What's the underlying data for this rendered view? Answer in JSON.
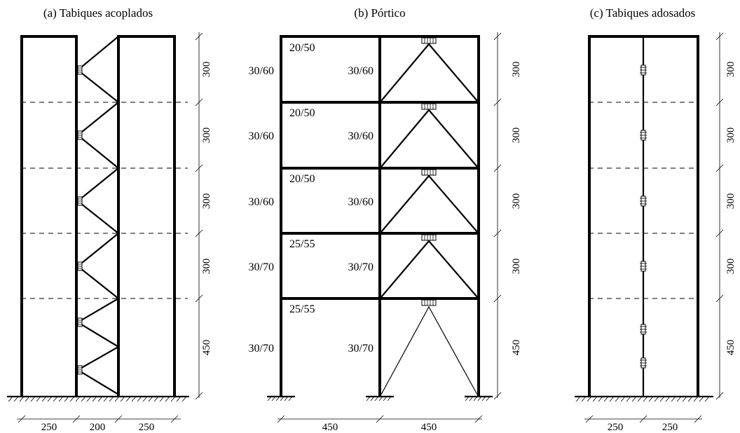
{
  "captions": {
    "a": "(a) Tabiques acoplados",
    "b": "(b) Pórtico",
    "c": "(c) Tabiques adosados"
  },
  "heights": [
    "300",
    "300",
    "300",
    "300",
    "450"
  ],
  "portico": {
    "beam_labels": [
      "20/50",
      "20/50",
      "20/50",
      "25/55",
      "25/55"
    ],
    "left_column_labels": [
      "30/60",
      "30/60",
      "30/60",
      "30/70",
      "30/70"
    ],
    "right_column_labels": [
      "30/60",
      "30/60",
      "30/60",
      "30/70",
      "30/70"
    ],
    "bay_widths": [
      "450",
      "450"
    ]
  },
  "coupled_walls_widths": [
    "250",
    "200",
    "250"
  ],
  "adjacent_walls_widths": [
    "250",
    "250"
  ]
}
